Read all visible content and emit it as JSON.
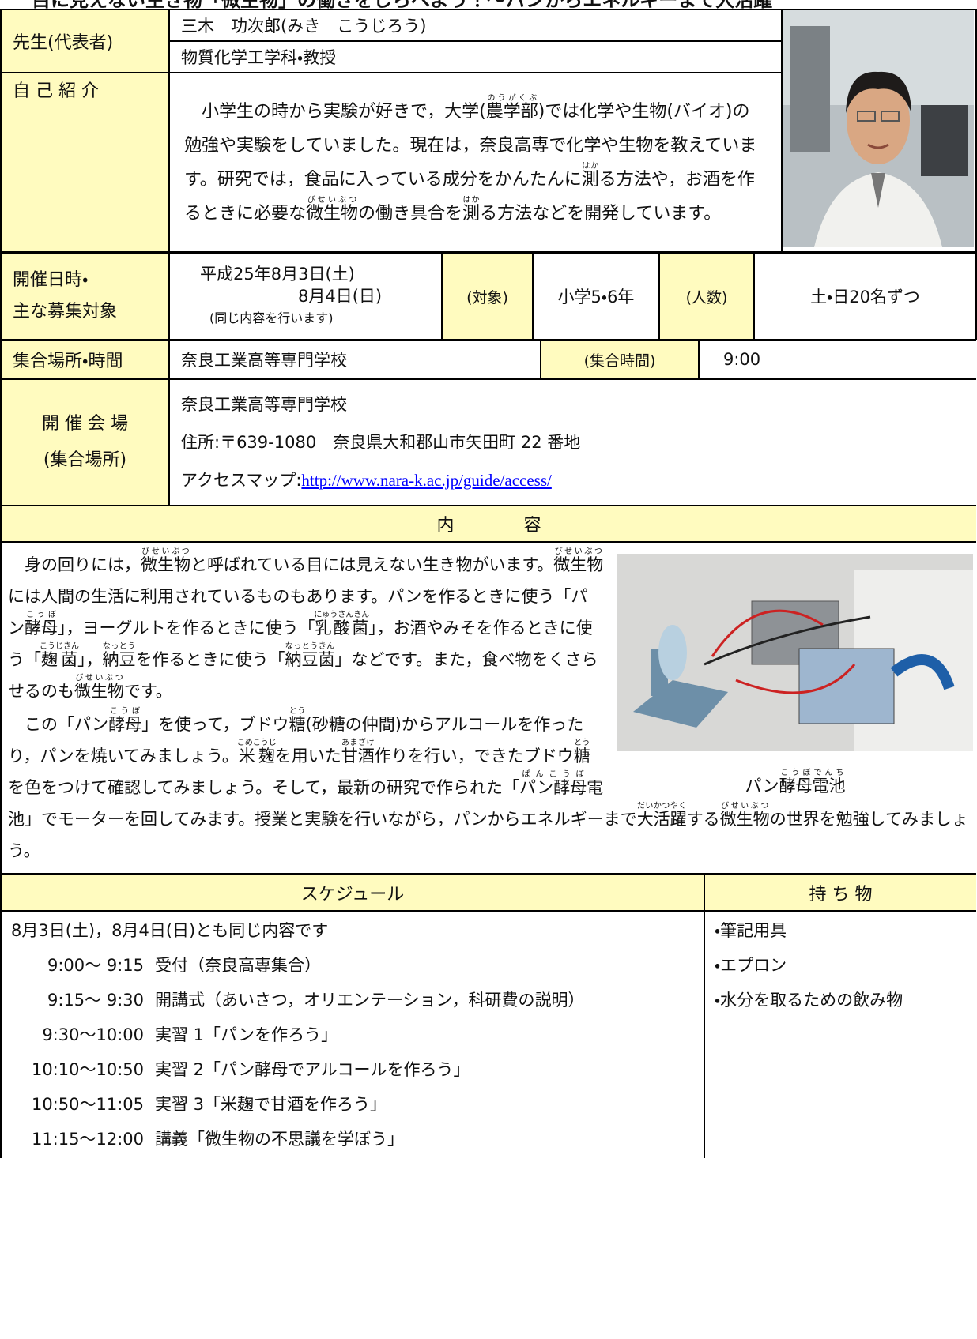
{
  "header": {
    "title": "目に見えない生き物「微生物」の働きをしらべよう！〜パンからエネルギーまで大活躍"
  },
  "teacher": {
    "label": "先生(代表者)",
    "name": "三木　功次郎(みき　こうじろう)",
    "dept": "物質化学工学科・教授"
  },
  "intro": {
    "label": "自 己 紹 介",
    "segments": [
      {
        "text": "　小学生の時から実験が好きで，大学("
      },
      {
        "base": "農学部",
        "ruby": "のうがくぶ"
      },
      {
        "text": ")では化学や生物(バイオ)の勉強や実験をしていました。現在は，奈良高専で化学や生物を教えています。研究では，食品に入っている成分をかんたんに"
      },
      {
        "base": "測",
        "ruby": "はか"
      },
      {
        "text": "る方法や，お酒を作るときに必要な"
      },
      {
        "base": "微生物",
        "ruby": "びせいぶつ"
      },
      {
        "text": "の働き具合を"
      },
      {
        "base": "測",
        "ruby": "はか"
      },
      {
        "text": "る方法などを開発しています。"
      }
    ]
  },
  "dates": {
    "label_lines": [
      "開催日時・",
      "主な募集対象"
    ],
    "lines": [
      "平成25年8月3日(土)",
      "8月4日(日)"
    ],
    "note": "(同じ内容を行います)",
    "target_label": "(対象)",
    "target": "小学5・6年",
    "count_label": "(人数)",
    "count": "土・日20名ずつ"
  },
  "meeting": {
    "label": "集合場所・時間",
    "place": "奈良工業高等専門学校",
    "time_label": "(集合時間)",
    "time": "9:00"
  },
  "venue": {
    "label_lines": [
      "開 催 会 場",
      "(集合場所)"
    ],
    "name": "奈良工業高等専門学校",
    "address": "住所:〒639-1080　奈良県大和郡山市矢田町 22 番地",
    "access_label": "アクセスマップ:",
    "url": "http://www.nara-k.ac.jp/guide/access/"
  },
  "content": {
    "heading": "内　　　　容",
    "caption": [
      {
        "text": "パン"
      },
      {
        "base": "酵母電池",
        "ruby": "こうぼでんち"
      }
    ],
    "paragraphs": [
      [
        {
          "text": "　身の回りには，"
        },
        {
          "base": "微生物",
          "ruby": "びせいぶつ"
        },
        {
          "text": "と呼ばれている目には見えない生き物がいます。"
        },
        {
          "base": "微生物",
          "ruby": "びせいぶつ"
        },
        {
          "text": "には人間の生活に利用されているものもあります。パンを作るときに使う「パン"
        },
        {
          "base": "酵母",
          "ruby": "こうぼ"
        },
        {
          "text": "」，ヨーグルトを作るときに使う「"
        },
        {
          "base": "乳酸菌",
          "ruby": "にゅうさんきん"
        },
        {
          "text": "」，お酒やみそを作るときに使う「"
        },
        {
          "base": "麹菌",
          "ruby": "こうじきん"
        },
        {
          "text": "」，"
        },
        {
          "base": "納豆",
          "ruby": "なっとう"
        },
        {
          "text": "を作るときに使う「"
        },
        {
          "base": "納豆菌",
          "ruby": "なっとうきん"
        },
        {
          "text": "」などです。また，食べ物をくさらせるのも"
        },
        {
          "base": "微生物",
          "ruby": "びせいぶつ"
        },
        {
          "text": "です。"
        }
      ],
      [
        {
          "text": "　この「パン"
        },
        {
          "base": "酵母",
          "ruby": "こうぼ"
        },
        {
          "text": "」を使って，ブドウ"
        },
        {
          "base": "糖",
          "ruby": "とう"
        },
        {
          "text": "(砂糖の仲間)からアルコールを作ったり，パンを焼いてみましょう。"
        },
        {
          "base": "米麹",
          "ruby": "こめこうじ"
        },
        {
          "text": "を用いた"
        },
        {
          "base": "甘酒",
          "ruby": "あまざけ"
        },
        {
          "text": "作りを行い，できたブドウ"
        },
        {
          "base": "糖",
          "ruby": "とう"
        },
        {
          "text": "を色をつけて確認してみましょう。そして，最新の研究で作られた「"
        },
        {
          "base": "パン酵母",
          "ruby": "ぱんこうぼ"
        },
        {
          "text": "電池」でモーターを回してみます。授業と実験を行いながら，パンからエネルギーまで"
        },
        {
          "base": "大活躍",
          "ruby": "だいかつやく"
        },
        {
          "text": "する"
        },
        {
          "base": "微生物",
          "ruby": "びせいぶつ"
        },
        {
          "text": "の世界を勉強してみましょう。"
        }
      ]
    ]
  },
  "schedule": {
    "heading": "スケジュール",
    "note": "8月3日(土)，8月4日(日)とも同じ内容です",
    "items": [
      {
        "time": "9:00〜 9:15",
        "text": "受付（奈良高専集合）"
      },
      {
        "time": "9:15〜 9:30",
        "text": "開講式（あいさつ，オリエンテーション，科研費の説明）"
      },
      {
        "time": "9:30〜10:00",
        "text": "実習 1「パンを作ろう」"
      },
      {
        "time": "10:10〜10:50",
        "text": "実習 2「パン酵母でアルコールを作ろう」"
      },
      {
        "time": "10:50〜11:05",
        "text": "実習 3「米麹で甘酒を作ろう」"
      },
      {
        "time": "11:15〜12:00",
        "text": "講義「微生物の不思議を学ぼう」"
      }
    ]
  },
  "belongings": {
    "heading": "持 ち 物",
    "items": [
      "・筆記用具",
      "・エプロン",
      "・水分を取るための飲み物"
    ]
  }
}
